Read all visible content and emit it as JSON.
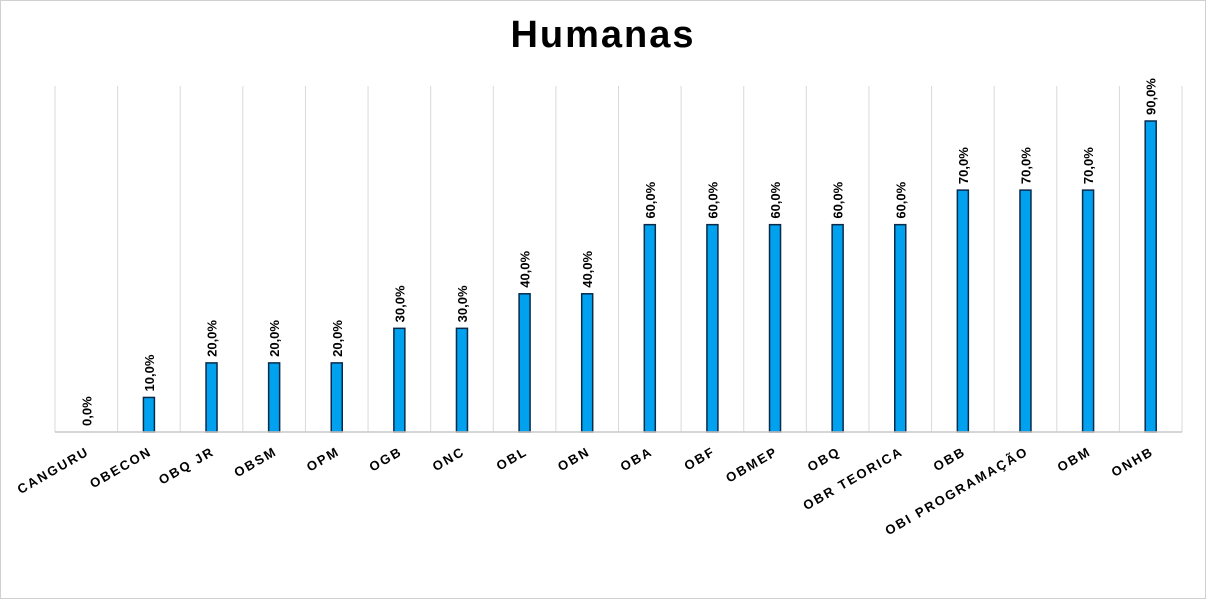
{
  "chart_data": {
    "type": "bar",
    "title": "Humanas",
    "categories": [
      "CANGURU",
      "OBECON",
      "OBQ JR",
      "OBSM",
      "OPM",
      "OGB",
      "ONC",
      "OBL",
      "OBN",
      "OBA",
      "OBF",
      "OBMEP",
      "OBQ",
      "OBR TEORICA",
      "OBB",
      "OBI PROGRAMAÇÃO",
      "OBM",
      "ONHB"
    ],
    "values": [
      0,
      10,
      20,
      20,
      20,
      30,
      30,
      40,
      40,
      60,
      60,
      60,
      60,
      60,
      70,
      70,
      70,
      90
    ],
    "data_labels": [
      "0,0%",
      "10,0%",
      "20,0%",
      "20,0%",
      "20,0%",
      "30,0%",
      "30,0%",
      "40,0%",
      "40,0%",
      "60,0%",
      "60,0%",
      "60,0%",
      "60,0%",
      "60,0%",
      "70,0%",
      "70,0%",
      "70,0%",
      "90,0%"
    ],
    "ylim": [
      0,
      100
    ],
    "xlabel": "",
    "ylabel": "",
    "grid": "vertical",
    "legend": "none",
    "bar_color": "#00a2f0",
    "bar_edge_color": "#0a2a4a"
  }
}
